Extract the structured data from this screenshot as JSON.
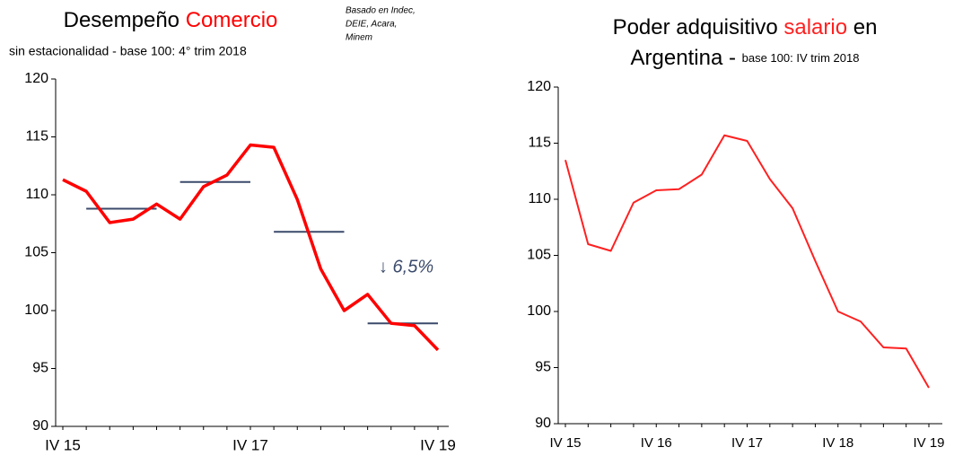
{
  "chart_data": [
    {
      "type": "line",
      "title": [
        "Desempeño ",
        "Comercio"
      ],
      "subtitle": "sin estacionalidad - base 100: 4° trim 2018",
      "note": [
        "Basado en Indec,",
        "DEIE, Acara,",
        "Minem"
      ],
      "annotation": "↓ 6,5%",
      "categories": [
        "IV 15",
        null,
        null,
        null,
        null,
        null,
        null,
        null,
        "IV 17",
        null,
        null,
        null,
        null,
        null,
        null,
        null,
        "IV 19"
      ],
      "series": [
        {
          "color": "#ff0000",
          "values": [
            111.3,
            110.3,
            107.6,
            107.9,
            109.2,
            107.9,
            110.7,
            111.7,
            114.3,
            114.1,
            109.6,
            103.6,
            100.0,
            101.4,
            98.9,
            98.7,
            96.6
          ]
        }
      ],
      "averages": {
        "color": "#3b4a6b",
        "segments": [
          {
            "from": 1,
            "to": 4,
            "value": 108.8
          },
          {
            "from": 5,
            "to": 8,
            "value": 111.1
          },
          {
            "from": 9,
            "to": 12,
            "value": 106.8
          },
          {
            "from": 13,
            "to": 16,
            "value": 98.9
          }
        ]
      },
      "ylim": [
        90,
        120
      ],
      "yticks": [
        90,
        95,
        100,
        105,
        110,
        115,
        120
      ]
    },
    {
      "type": "line",
      "title": [
        "Poder adquisitivo ",
        "salario",
        " en",
        "Argentina - ",
        "base 100: IV trim 2018"
      ],
      "categories": [
        "IV 15",
        null,
        null,
        null,
        "IV 16",
        null,
        null,
        null,
        "IV 17",
        null,
        null,
        null,
        "IV 18",
        null,
        null,
        null,
        "IV 19"
      ],
      "series": [
        {
          "color": "#ff2020",
          "values": [
            113.5,
            106.0,
            105.4,
            109.7,
            110.8,
            110.9,
            112.2,
            115.7,
            115.2,
            111.8,
            109.2,
            104.5,
            100.0,
            99.1,
            96.8,
            96.7,
            93.2
          ]
        }
      ],
      "ylim": [
        90,
        120
      ],
      "yticks": [
        90,
        95,
        100,
        105,
        110,
        115,
        120
      ]
    }
  ]
}
